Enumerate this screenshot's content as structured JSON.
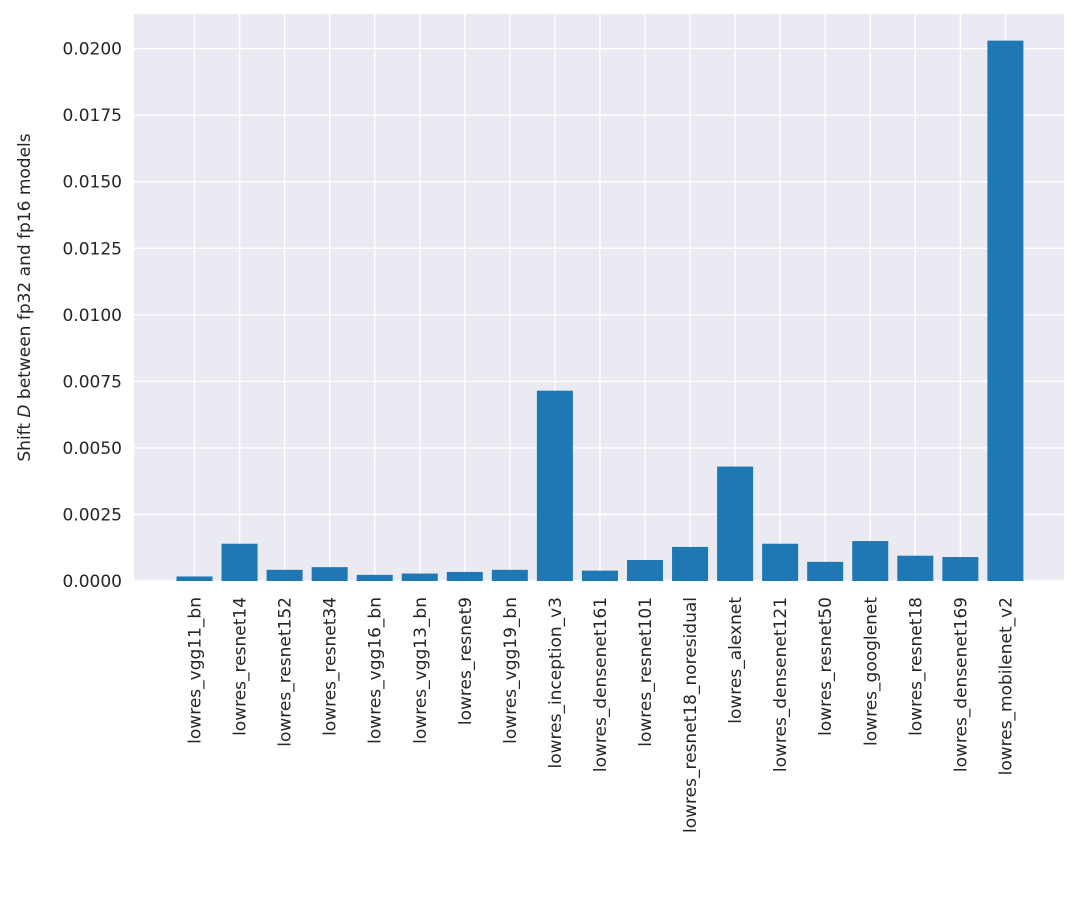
{
  "chart_data": {
    "type": "bar",
    "title": "",
    "xlabel": "",
    "ylabel_prefix": "Shift ",
    "ylabel_symbol": "D",
    "ylabel_suffix": " between fp32 and fp16 models",
    "ylim": [
      0,
      0.0213
    ],
    "grid": true,
    "background": "#EAEAF2",
    "bar_color": "#1F77B4",
    "yticks": [
      "0.0000",
      "0.0025",
      "0.0050",
      "0.0075",
      "0.0100",
      "0.0125",
      "0.0150",
      "0.0175",
      "0.0200"
    ],
    "categories": [
      "lowres_vgg11_bn",
      "lowres_resnet14",
      "lowres_resnet152",
      "lowres_resnet34",
      "lowres_vgg16_bn",
      "lowres_vgg13_bn",
      "lowres_resnet9",
      "lowres_vgg19_bn",
      "lowres_inception_v3",
      "lowres_densenet161",
      "lowres_resnet101",
      "lowres_resnet18_noresidual",
      "lowres_alexnet",
      "lowres_densenet121",
      "lowres_resnet50",
      "lowres_googlenet",
      "lowres_resnet18",
      "lowres_densenet169",
      "lowres_mobilenet_v2"
    ],
    "values": [
      0.00017,
      0.0014,
      0.00042,
      0.00052,
      0.00023,
      0.00028,
      0.00034,
      0.00042,
      0.00715,
      0.00039,
      0.00079,
      0.00128,
      0.0043,
      0.0014,
      0.00072,
      0.0015,
      0.00095,
      0.0009,
      0.0203
    ]
  }
}
